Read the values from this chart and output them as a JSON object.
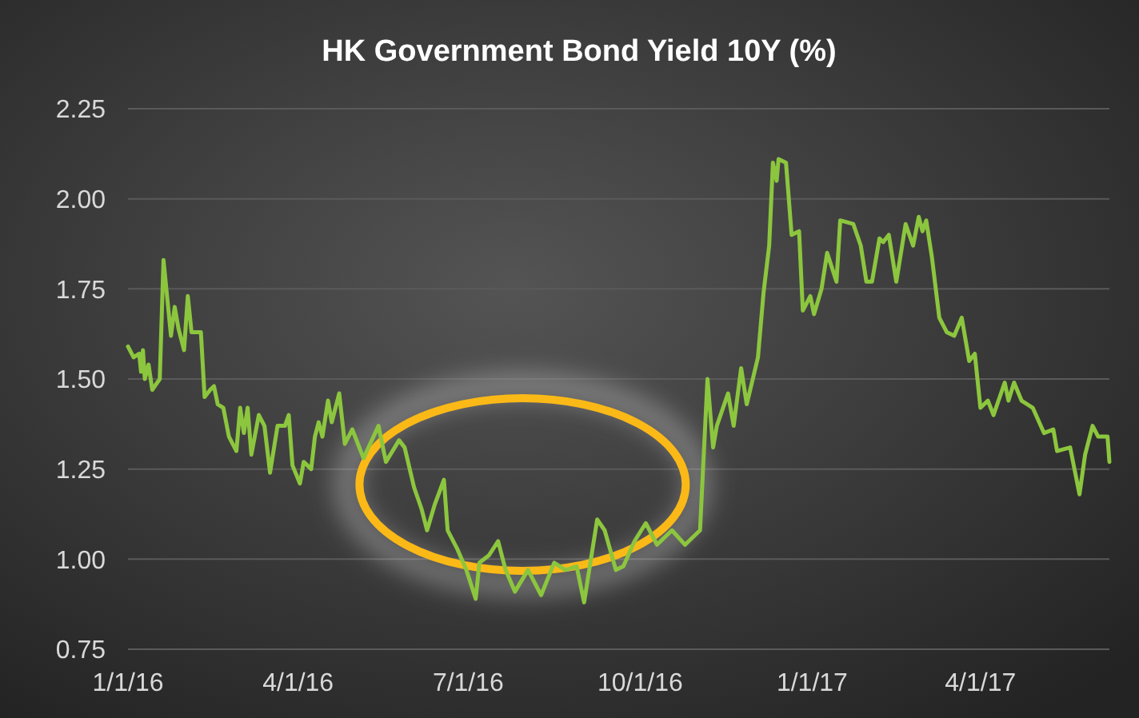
{
  "chart_data": {
    "type": "line",
    "title": "HK Government Bond Yield 10Y (%)",
    "xlim": [
      "2016-01-01",
      "2017-06-09"
    ],
    "xticks": [
      {
        "value": "2016-01-01",
        "label": "1/1/16"
      },
      {
        "value": "2016-04-01",
        "label": "4/1/16"
      },
      {
        "value": "2016-07-01",
        "label": "7/1/16"
      },
      {
        "value": "2016-10-01",
        "label": "10/1/16"
      },
      {
        "value": "2017-01-01",
        "label": "1/1/17"
      },
      {
        "value": "2017-04-01",
        "label": "4/1/17"
      }
    ],
    "ylim": [
      0.75,
      2.25
    ],
    "yticks": [
      {
        "value": 0.75,
        "label": "0.75"
      },
      {
        "value": 1,
        "label": "1.00"
      },
      {
        "value": 1.25,
        "label": "1.25"
      },
      {
        "value": 1.5,
        "label": "1.50"
      },
      {
        "value": 1.75,
        "label": "1.75"
      },
      {
        "value": 2,
        "label": "2.00"
      },
      {
        "value": 2.25,
        "label": "2.25"
      }
    ],
    "grid": "y",
    "marker": "none",
    "line_style": "solid",
    "series": [
      {
        "color": "#8cc63e",
        "x": [
          "2016-01-01",
          "2016-01-04",
          "2016-01-07",
          "2016-01-08",
          "2016-01-09",
          "2016-01-10",
          "2016-01-12",
          "2016-01-14",
          "2016-01-18",
          "2016-01-20",
          "2016-01-24",
          "2016-01-26",
          "2016-01-28",
          "2016-01-31",
          "2016-02-02",
          "2016-02-04",
          "2016-02-09",
          "2016-02-11",
          "2016-02-14",
          "2016-02-16",
          "2016-02-18",
          "2016-02-21",
          "2016-02-24",
          "2016-02-28",
          "2016-03-01",
          "2016-03-03",
          "2016-03-05",
          "2016-03-07",
          "2016-03-11",
          "2016-03-14",
          "2016-03-17",
          "2016-03-21",
          "2016-03-25",
          "2016-03-27",
          "2016-03-29",
          "2016-04-02",
          "2016-04-04",
          "2016-04-08",
          "2016-04-10",
          "2016-04-12",
          "2016-04-14",
          "2016-04-17",
          "2016-04-19",
          "2016-04-23",
          "2016-04-26",
          "2016-04-30",
          "2016-05-06",
          "2016-05-14",
          "2016-05-18",
          "2016-05-25",
          "2016-05-28",
          "2016-06-02",
          "2016-06-06",
          "2016-06-09",
          "2016-06-13",
          "2016-06-18",
          "2016-06-20",
          "2016-06-25",
          "2016-06-30",
          "2016-07-05",
          "2016-07-07",
          "2016-07-12",
          "2016-07-17",
          "2016-07-21",
          "2016-07-26",
          "2016-08-02",
          "2016-08-09",
          "2016-08-16",
          "2016-08-22",
          "2016-08-28",
          "2016-09-01",
          "2016-09-08",
          "2016-09-12",
          "2016-09-18",
          "2016-09-22",
          "2016-09-28",
          "2016-10-04",
          "2016-10-10",
          "2016-10-18",
          "2016-10-25",
          "2016-10-31",
          "2016-11-02",
          "2016-11-06",
          "2016-11-09",
          "2016-11-11",
          "2016-11-17",
          "2016-11-20",
          "2016-11-24",
          "2016-11-27",
          "2016-12-03",
          "2016-12-06",
          "2016-12-09",
          "2016-12-11",
          "2016-12-13",
          "2016-12-14",
          "2016-12-18",
          "2016-12-21",
          "2016-12-25",
          "2016-12-27",
          "2016-12-31",
          "2017-01-02",
          "2017-01-06",
          "2017-01-09",
          "2017-01-14",
          "2017-01-16",
          "2017-01-23",
          "2017-01-27",
          "2017-01-30",
          "2017-02-02",
          "2017-02-06",
          "2017-02-08",
          "2017-02-11",
          "2017-02-15",
          "2017-02-20",
          "2017-02-24",
          "2017-02-27",
          "2017-03-01",
          "2017-03-03",
          "2017-03-06",
          "2017-03-10",
          "2017-03-14",
          "2017-03-18",
          "2017-03-22",
          "2017-03-26",
          "2017-03-29",
          "2017-04-01",
          "2017-04-05",
          "2017-04-08",
          "2017-04-14",
          "2017-04-16",
          "2017-04-19",
          "2017-04-23",
          "2017-04-29",
          "2017-05-05",
          "2017-05-10",
          "2017-05-12",
          "2017-05-19",
          "2017-05-24",
          "2017-05-27",
          "2017-05-31",
          "2017-06-03",
          "2017-06-08",
          "2017-06-09"
        ],
        "values": [
          1.59,
          1.56,
          1.57,
          1.52,
          1.58,
          1.5,
          1.54,
          1.47,
          1.5,
          1.83,
          1.62,
          1.7,
          1.64,
          1.58,
          1.73,
          1.63,
          1.63,
          1.45,
          1.47,
          1.48,
          1.43,
          1.42,
          1.34,
          1.3,
          1.42,
          1.35,
          1.42,
          1.29,
          1.4,
          1.37,
          1.24,
          1.37,
          1.37,
          1.4,
          1.26,
          1.21,
          1.27,
          1.25,
          1.34,
          1.38,
          1.34,
          1.44,
          1.38,
          1.46,
          1.32,
          1.36,
          1.28,
          1.37,
          1.27,
          1.33,
          1.31,
          1.2,
          1.14,
          1.08,
          1.15,
          1.22,
          1.08,
          1.03,
          0.97,
          0.89,
          0.99,
          1.01,
          1.05,
          0.97,
          0.91,
          0.97,
          0.9,
          0.99,
          0.97,
          0.98,
          0.88,
          1.11,
          1.08,
          0.97,
          0.98,
          1.05,
          1.1,
          1.04,
          1.08,
          1.04,
          1.07,
          1.08,
          1.5,
          1.31,
          1.37,
          1.46,
          1.37,
          1.53,
          1.43,
          1.56,
          1.74,
          1.87,
          2.1,
          2.05,
          2.11,
          2.1,
          1.9,
          1.91,
          1.69,
          1.73,
          1.68,
          1.75,
          1.85,
          1.77,
          1.94,
          1.93,
          1.87,
          1.77,
          1.77,
          1.89,
          1.88,
          1.9,
          1.77,
          1.93,
          1.87,
          1.95,
          1.91,
          1.94,
          1.84,
          1.67,
          1.63,
          1.62,
          1.67,
          1.55,
          1.57,
          1.42,
          1.44,
          1.4,
          1.49,
          1.44,
          1.49,
          1.44,
          1.42,
          1.35,
          1.36,
          1.3,
          1.31,
          1.18,
          1.29,
          1.37,
          1.34,
          1.34,
          1.27
        ]
      }
    ]
  }
}
